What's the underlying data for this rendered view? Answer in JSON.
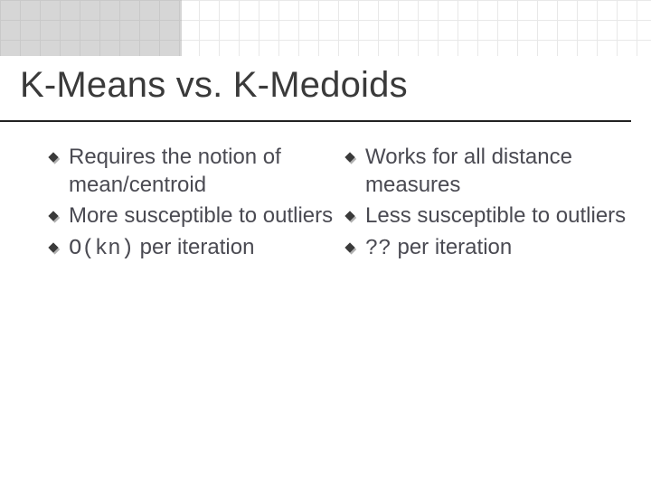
{
  "title": "K-Means vs. K-Medoids",
  "left": {
    "items": [
      {
        "text": "Requires the notion of mean/centroid"
      },
      {
        "text": "More susceptible to outliers"
      },
      {
        "code": "O(kn)",
        "suffix": " per iteration"
      }
    ]
  },
  "right": {
    "items": [
      {
        "text": "Works for all distance measures"
      },
      {
        "text": "Less susceptible to outliers"
      },
      {
        "code": "??",
        "suffix": " per iteration"
      }
    ]
  },
  "colors": {
    "text": "#4a4a52",
    "title": "#3a3a3a",
    "divider": "#222222",
    "grid": "#e8e8e8",
    "topbox": "#d6d6d6"
  },
  "fonts": {
    "title_size_pt": 30,
    "body_size_pt": 18
  }
}
